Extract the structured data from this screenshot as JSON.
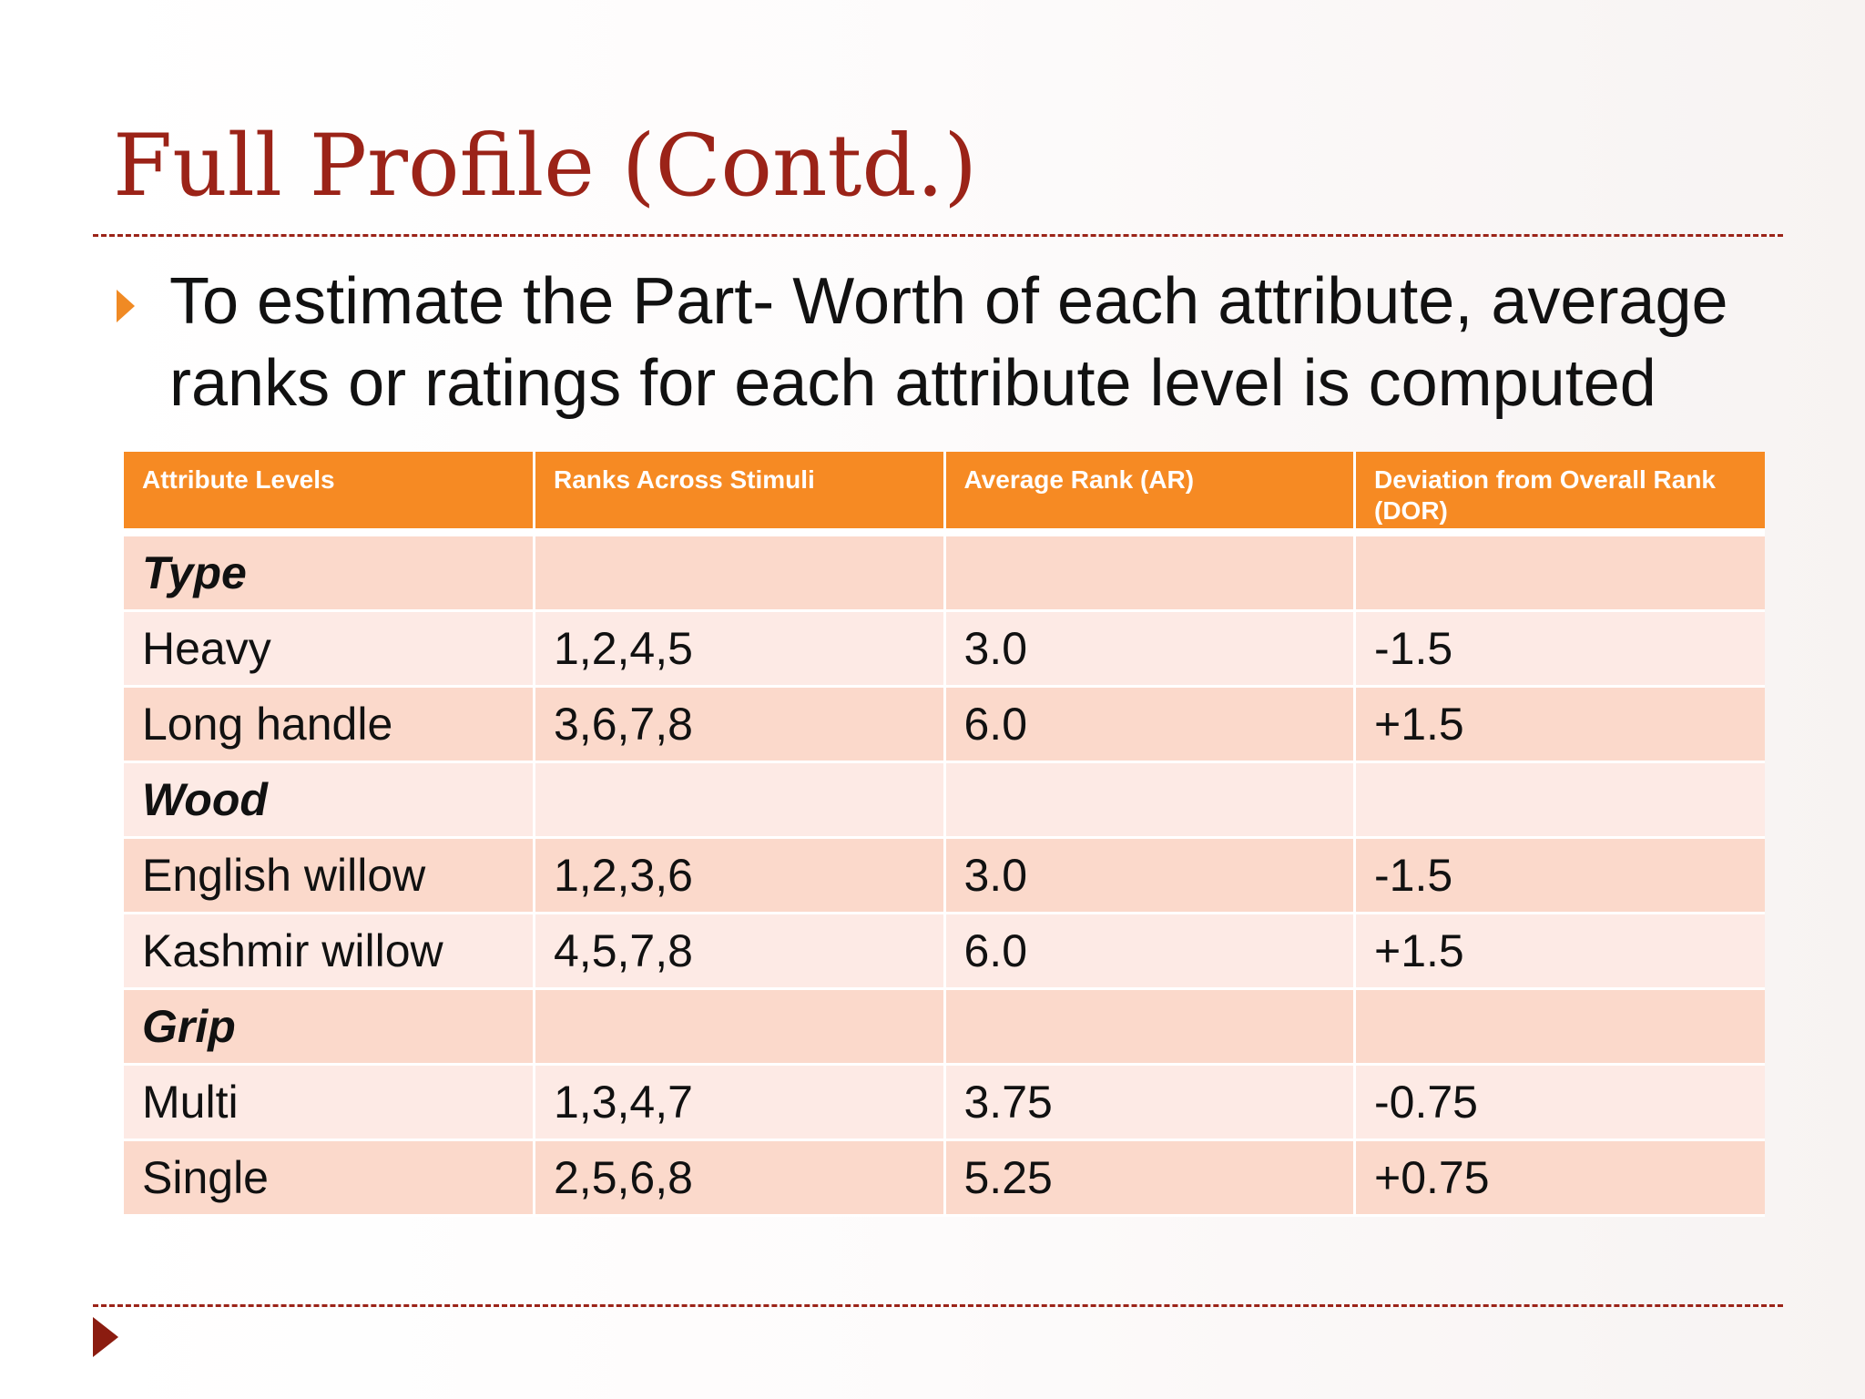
{
  "slide": {
    "title": "Full Profile (Contd.)",
    "bullet": "To estimate the Part- Worth of each attribute, average ranks or ratings for each attribute level is computed",
    "colors": {
      "title": "#9b2318",
      "accent_orange": "#f68a23",
      "row_dark": "#fbd9cb",
      "row_light": "#fdeae5"
    },
    "icons": {
      "bullet": "orange-triangle-bullet-icon",
      "footer": "dark-red-triangle-icon"
    }
  },
  "table": {
    "headers": [
      "Attribute Levels",
      "Ranks Across Stimuli",
      "Average Rank (AR)",
      "Deviation from Overall Rank (DOR)"
    ],
    "rows": [
      {
        "level": "Type",
        "ranks": "",
        "ar": "",
        "dor": "",
        "group": true
      },
      {
        "level": "Heavy",
        "ranks": "1,2,4,5",
        "ar": "3.0",
        "dor": "-1.5",
        "group": false
      },
      {
        "level": "Long handle",
        "ranks": "3,6,7,8",
        "ar": "6.0",
        "dor": "+1.5",
        "group": false
      },
      {
        "level": "Wood",
        "ranks": "",
        "ar": "",
        "dor": "",
        "group": true
      },
      {
        "level": "English willow",
        "ranks": "1,2,3,6",
        "ar": "3.0",
        "dor": "-1.5",
        "group": false
      },
      {
        "level": "Kashmir willow",
        "ranks": "4,5,7,8",
        "ar": "6.0",
        "dor": "+1.5",
        "group": false
      },
      {
        "level": "Grip",
        "ranks": "",
        "ar": "",
        "dor": "",
        "group": true
      },
      {
        "level": "Multi",
        "ranks": "1,3,4,7",
        "ar": "3.75",
        "dor": "-0.75",
        "group": false
      },
      {
        "level": "Single",
        "ranks": "2,5,6,8",
        "ar": "5.25",
        "dor": "+0.75",
        "group": false
      }
    ]
  }
}
